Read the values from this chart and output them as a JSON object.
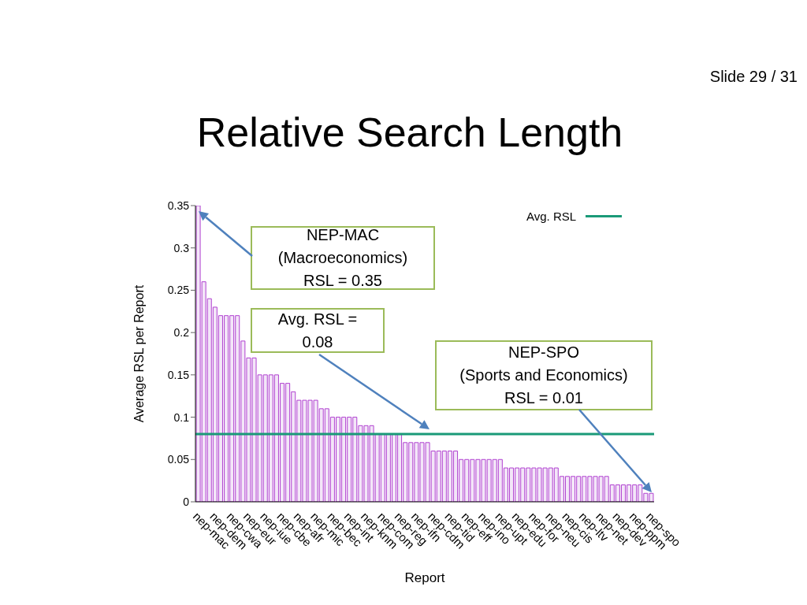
{
  "chart_data": {
    "type": "bar",
    "title": "Relative Search Length",
    "xlabel": "Report",
    "ylabel": "Average RSL per Report",
    "categories": [
      "nep-mac",
      null,
      null,
      "nep-dem",
      null,
      null,
      "nep-cwa",
      null,
      null,
      "nep-eur",
      null,
      null,
      "nep-iue",
      null,
      null,
      "nep-cbe",
      null,
      null,
      "nep-afr",
      null,
      null,
      "nep-mic",
      null,
      null,
      "nep-bec",
      null,
      null,
      "nep-int",
      null,
      null,
      "nep-knm",
      null,
      null,
      "nep-com",
      null,
      null,
      "nep-reg",
      null,
      null,
      "nep-ifn",
      null,
      null,
      "nep-cdm",
      null,
      null,
      "nep-tid",
      null,
      null,
      "nep-eff",
      null,
      null,
      "nep-ino",
      null,
      null,
      "nep-upt",
      null,
      null,
      "nep-edu",
      null,
      null,
      "nep-for",
      null,
      null,
      "nep-neu",
      null,
      null,
      "nep-cis",
      null,
      null,
      "nep-ltv",
      null,
      null,
      "nep-net",
      null,
      null,
      "nep-dev",
      null,
      null,
      "nep-ppm",
      null,
      null,
      "nep-spo"
    ],
    "values": [
      0.35,
      0.26,
      0.24,
      0.23,
      0.22,
      0.22,
      0.22,
      0.22,
      0.19,
      0.17,
      0.17,
      0.15,
      0.15,
      0.15,
      0.15,
      0.14,
      0.14,
      0.13,
      0.12,
      0.12,
      0.12,
      0.12,
      0.11,
      0.11,
      0.1,
      0.1,
      0.1,
      0.1,
      0.1,
      0.09,
      0.09,
      0.09,
      0.08,
      0.08,
      0.08,
      0.08,
      0.08,
      0.07,
      0.07,
      0.07,
      0.07,
      0.07,
      0.06,
      0.06,
      0.06,
      0.06,
      0.06,
      0.05,
      0.05,
      0.05,
      0.05,
      0.05,
      0.05,
      0.05,
      0.05,
      0.04,
      0.04,
      0.04,
      0.04,
      0.04,
      0.04,
      0.04,
      0.04,
      0.04,
      0.04,
      0.03,
      0.03,
      0.03,
      0.03,
      0.03,
      0.03,
      0.03,
      0.03,
      0.03,
      0.02,
      0.02,
      0.02,
      0.02,
      0.02,
      0.02,
      0.01,
      0.01
    ],
    "color": "#b040d0",
    "ylim": [
      0,
      0.35
    ],
    "yticks": [
      0,
      0.05,
      0.1,
      0.15,
      0.2,
      0.25,
      0.3,
      0.35
    ],
    "legend": "top right",
    "ref_lines": [
      {
        "axis": "y",
        "value": 0.08,
        "label": "Avg. RSL",
        "color": "#1a9a78"
      }
    ],
    "annotations": [
      "NEP-MAC\n(Macroeconomics)\nRSL = 0.35",
      "Avg. RSL =\n0.08",
      "NEP-SPO\n(Sports and Economics)\nRSL = 0.01",
      "Slide 29 / 31"
    ]
  }
}
